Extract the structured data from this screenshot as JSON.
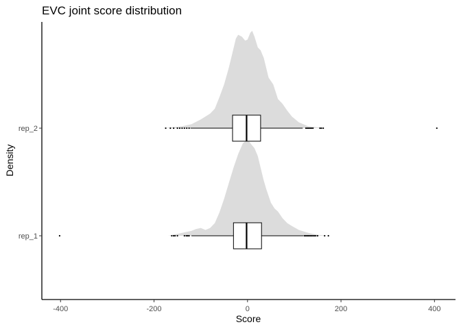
{
  "chart_data": {
    "type": "boxplot-density",
    "title": "EVC joint score distribution",
    "xlabel": "Score",
    "ylabel": "Density",
    "xlim": [
      -440,
      445
    ],
    "x_ticks": [
      -400,
      -200,
      0,
      200,
      400
    ],
    "x_tick_labels": [
      "-400",
      "-200",
      "0",
      "200",
      "400"
    ],
    "categories": [
      "rep_1",
      "rep_2"
    ],
    "grid": false,
    "legend": "none",
    "colors": {
      "density_fill": "#dcdcdc",
      "box_fill": "#ffffff",
      "line": "#000000",
      "axis": "#000000"
    },
    "series": [
      {
        "category": "rep_1",
        "box": {
          "whisker_low": -120,
          "q1": -30,
          "median": -2,
          "q3": 30,
          "whisker_high": 120
        },
        "outliers": [
          -402,
          -162,
          -158,
          -155,
          -150,
          -135,
          -131,
          -128,
          -125,
          122,
          125,
          128,
          131,
          134,
          137,
          140,
          143,
          146,
          150,
          165,
          173
        ],
        "density": [
          [
            -170,
            0
          ],
          [
            -150,
            0.02
          ],
          [
            -130,
            0.04
          ],
          [
            -120,
            0.05
          ],
          [
            -110,
            0.07
          ],
          [
            -100,
            0.08
          ],
          [
            -90,
            0.06
          ],
          [
            -80,
            0.08
          ],
          [
            -70,
            0.13
          ],
          [
            -60,
            0.24
          ],
          [
            -50,
            0.38
          ],
          [
            -40,
            0.54
          ],
          [
            -30,
            0.7
          ],
          [
            -20,
            0.84
          ],
          [
            -10,
            0.95
          ],
          [
            0,
            0.99
          ],
          [
            8,
            0.94
          ],
          [
            15,
            0.9
          ],
          [
            22,
            0.82
          ],
          [
            28,
            0.7
          ],
          [
            34,
            0.58
          ],
          [
            40,
            0.48
          ],
          [
            50,
            0.34
          ],
          [
            58,
            0.28
          ],
          [
            65,
            0.25
          ],
          [
            75,
            0.18
          ],
          [
            85,
            0.13
          ],
          [
            95,
            0.1
          ],
          [
            110,
            0.06
          ],
          [
            130,
            0.03
          ],
          [
            150,
            0.01
          ],
          [
            175,
            0
          ]
        ]
      },
      {
        "category": "rep_2",
        "box": {
          "whisker_low": -122,
          "q1": -32,
          "median": -2,
          "q3": 28,
          "whisker_high": 118
        },
        "outliers": [
          -175,
          -165,
          -158,
          -150,
          -145,
          -140,
          -135,
          -130,
          -125,
          125,
          128,
          131,
          134,
          137,
          140,
          155,
          158,
          162,
          405
        ],
        "density": [
          [
            -180,
            0
          ],
          [
            -160,
            0.01
          ],
          [
            -140,
            0.02
          ],
          [
            -120,
            0.04
          ],
          [
            -100,
            0.09
          ],
          [
            -90,
            0.12
          ],
          [
            -80,
            0.15
          ],
          [
            -70,
            0.2
          ],
          [
            -60,
            0.32
          ],
          [
            -50,
            0.45
          ],
          [
            -40,
            0.62
          ],
          [
            -30,
            0.82
          ],
          [
            -25,
            0.92
          ],
          [
            -20,
            0.96
          ],
          [
            -12,
            0.94
          ],
          [
            -5,
            0.9
          ],
          [
            0,
            0.91
          ],
          [
            6,
            0.98
          ],
          [
            10,
            1.0
          ],
          [
            15,
            0.94
          ],
          [
            22,
            0.83
          ],
          [
            28,
            0.8
          ],
          [
            35,
            0.72
          ],
          [
            45,
            0.52
          ],
          [
            55,
            0.45
          ],
          [
            65,
            0.3
          ],
          [
            75,
            0.25
          ],
          [
            85,
            0.18
          ],
          [
            95,
            0.12
          ],
          [
            110,
            0.06
          ],
          [
            130,
            0.02
          ],
          [
            165,
            0
          ]
        ]
      }
    ]
  }
}
